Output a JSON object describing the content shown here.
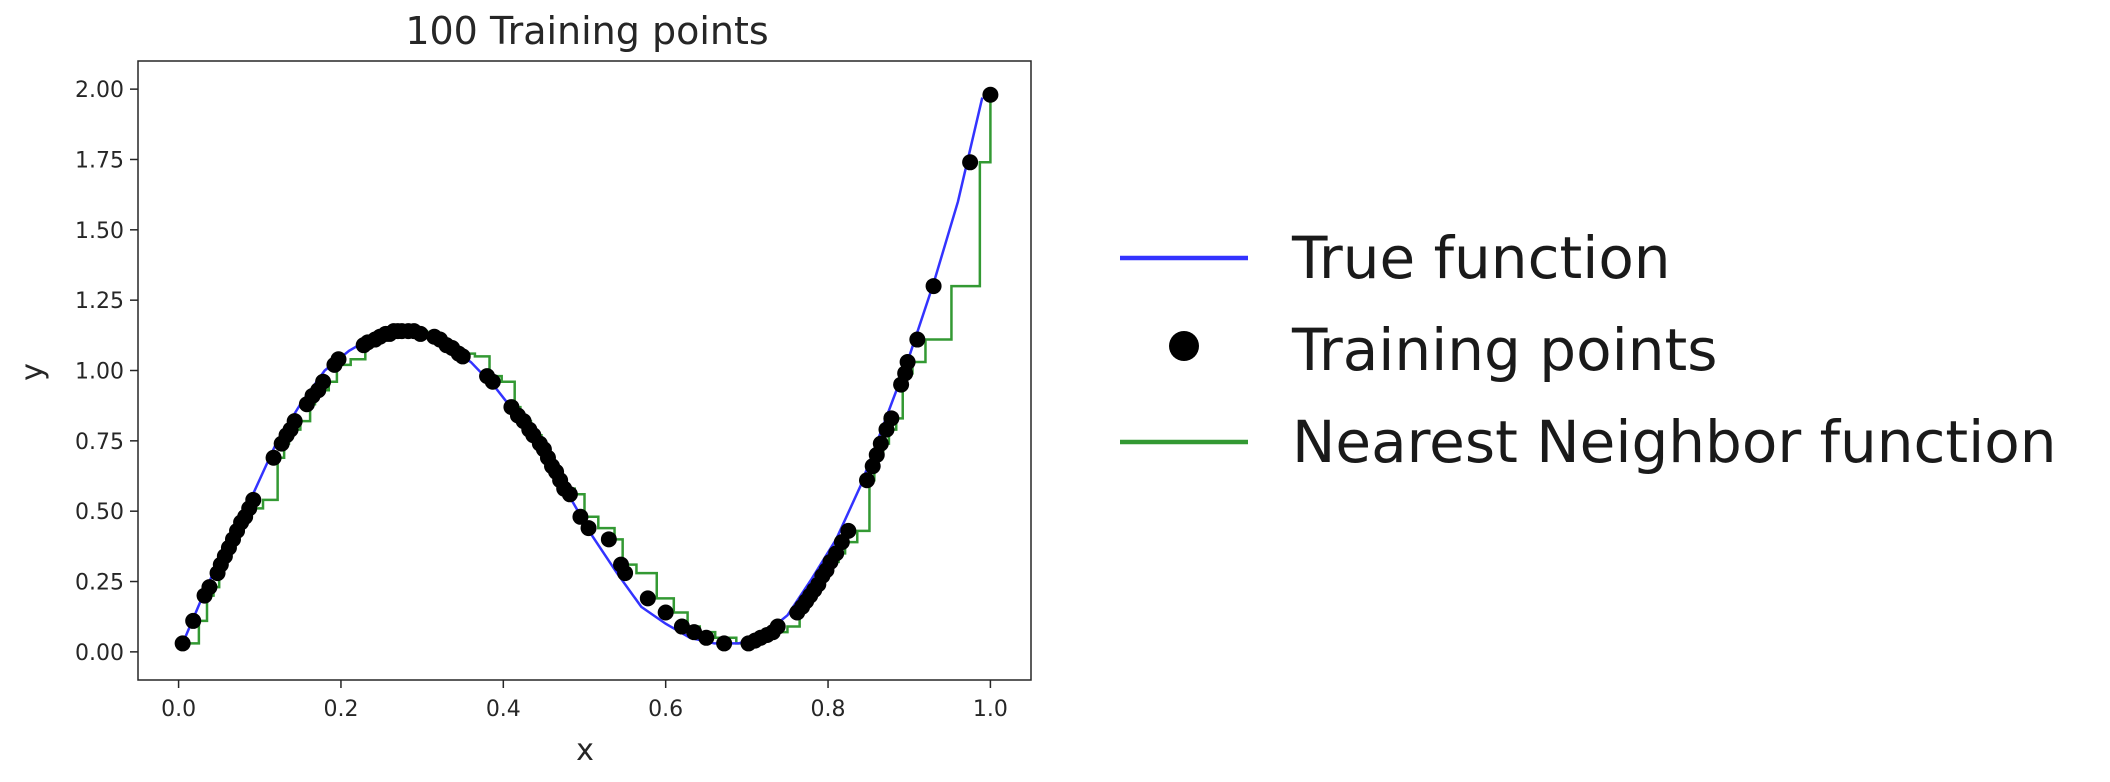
{
  "chart_data": {
    "type": "line",
    "title": "100 Training points",
    "xlabel": "x",
    "ylabel": "y",
    "xlim": [
      -0.05,
      1.05
    ],
    "ylim": [
      -0.1,
      2.1
    ],
    "grid": false,
    "legend_placement": "outside-right",
    "x_ticks": [
      0.0,
      0.2,
      0.4,
      0.6,
      0.8,
      1.0
    ],
    "x_tick_labels": [
      "0.0",
      "0.2",
      "0.4",
      "0.6",
      "0.8",
      "1.0"
    ],
    "y_ticks": [
      0.0,
      0.25,
      0.5,
      0.75,
      1.0,
      1.25,
      1.5,
      1.75,
      2.0
    ],
    "y_tick_labels": [
      "0.00",
      "0.25",
      "0.50",
      "0.75",
      "1.00",
      "1.25",
      "1.50",
      "1.75",
      "2.00"
    ],
    "colors": {
      "true_function": "#3333ff",
      "training_points": "#000000",
      "nearest_neighbor": "#339933"
    },
    "series": [
      {
        "name": "True function",
        "kind": "line",
        "color": "#3333ff",
        "x": [
          0.005,
          0.03,
          0.06,
          0.09,
          0.12,
          0.15,
          0.18,
          0.21,
          0.24,
          0.27,
          0.3,
          0.33,
          0.36,
          0.39,
          0.42,
          0.45,
          0.48,
          0.51,
          0.54,
          0.57,
          0.6,
          0.63,
          0.66,
          0.69,
          0.72,
          0.75,
          0.78,
          0.81,
          0.84,
          0.87,
          0.9,
          0.93,
          0.96,
          0.99
        ],
        "y": [
          0.03,
          0.2,
          0.39,
          0.55,
          0.74,
          0.88,
          1.0,
          1.07,
          1.12,
          1.14,
          1.13,
          1.09,
          1.03,
          0.94,
          0.83,
          0.71,
          0.56,
          0.41,
          0.28,
          0.16,
          0.1,
          0.05,
          0.03,
          0.03,
          0.06,
          0.13,
          0.26,
          0.4,
          0.59,
          0.82,
          1.05,
          1.31,
          1.6,
          1.97
        ]
      },
      {
        "name": "Training points",
        "kind": "scatter",
        "color": "#000000",
        "x": [
          0.005,
          0.018,
          0.032,
          0.038,
          0.048,
          0.052,
          0.057,
          0.062,
          0.067,
          0.072,
          0.077,
          0.082,
          0.087,
          0.092,
          0.117,
          0.127,
          0.133,
          0.138,
          0.143,
          0.158,
          0.165,
          0.172,
          0.178,
          0.192,
          0.197,
          0.228,
          0.233,
          0.242,
          0.248,
          0.255,
          0.26,
          0.265,
          0.27,
          0.275,
          0.283,
          0.29,
          0.298,
          0.315,
          0.322,
          0.33,
          0.337,
          0.345,
          0.35,
          0.38,
          0.387,
          0.41,
          0.418,
          0.425,
          0.432,
          0.437,
          0.445,
          0.45,
          0.455,
          0.46,
          0.465,
          0.47,
          0.475,
          0.482,
          0.495,
          0.505,
          0.53,
          0.545,
          0.55,
          0.578,
          0.6,
          0.62,
          0.635,
          0.65,
          0.672,
          0.702,
          0.71,
          0.717,
          0.725,
          0.732,
          0.738,
          0.762,
          0.768,
          0.773,
          0.778,
          0.783,
          0.788,
          0.793,
          0.798,
          0.803,
          0.81,
          0.817,
          0.825,
          0.848,
          0.855,
          0.86,
          0.865,
          0.872,
          0.878,
          0.89,
          0.895,
          0.898,
          0.91,
          0.93,
          0.975,
          1.0
        ],
        "y": [
          0.03,
          0.11,
          0.2,
          0.23,
          0.28,
          0.31,
          0.34,
          0.37,
          0.4,
          0.43,
          0.46,
          0.48,
          0.51,
          0.54,
          0.69,
          0.74,
          0.77,
          0.79,
          0.82,
          0.88,
          0.91,
          0.93,
          0.96,
          1.02,
          1.04,
          1.09,
          1.1,
          1.11,
          1.12,
          1.13,
          1.13,
          1.14,
          1.14,
          1.14,
          1.14,
          1.14,
          1.13,
          1.12,
          1.11,
          1.09,
          1.08,
          1.06,
          1.05,
          0.98,
          0.96,
          0.87,
          0.84,
          0.82,
          0.79,
          0.77,
          0.74,
          0.72,
          0.69,
          0.66,
          0.64,
          0.61,
          0.58,
          0.56,
          0.48,
          0.44,
          0.4,
          0.31,
          0.28,
          0.19,
          0.14,
          0.09,
          0.07,
          0.05,
          0.03,
          0.03,
          0.04,
          0.05,
          0.06,
          0.07,
          0.09,
          0.14,
          0.16,
          0.18,
          0.2,
          0.22,
          0.24,
          0.27,
          0.29,
          0.32,
          0.35,
          0.39,
          0.43,
          0.61,
          0.66,
          0.7,
          0.74,
          0.79,
          0.83,
          0.95,
          0.99,
          1.03,
          1.11,
          1.3,
          1.74,
          1.98
        ]
      },
      {
        "name": "Nearest Neighbor function",
        "kind": "step",
        "color": "#339933",
        "x": [
          0.005,
          0.01,
          0.025,
          0.035,
          0.043,
          0.05,
          0.055,
          0.06,
          0.065,
          0.07,
          0.075,
          0.08,
          0.085,
          0.09,
          0.104,
          0.122,
          0.13,
          0.136,
          0.14,
          0.15,
          0.162,
          0.168,
          0.175,
          0.185,
          0.195,
          0.212,
          0.23,
          0.238,
          0.245,
          0.252,
          0.258,
          0.262,
          0.268,
          0.272,
          0.279,
          0.287,
          0.294,
          0.306,
          0.318,
          0.326,
          0.333,
          0.341,
          0.347,
          0.365,
          0.383,
          0.398,
          0.414,
          0.421,
          0.428,
          0.434,
          0.441,
          0.447,
          0.452,
          0.457,
          0.462,
          0.467,
          0.472,
          0.478,
          0.488,
          0.5,
          0.517,
          0.537,
          0.547,
          0.564,
          0.589,
          0.61,
          0.627,
          0.642,
          0.661,
          0.687,
          0.706,
          0.713,
          0.721,
          0.728,
          0.735,
          0.75,
          0.765,
          0.77,
          0.775,
          0.78,
          0.785,
          0.79,
          0.795,
          0.8,
          0.806,
          0.813,
          0.821,
          0.836,
          0.851,
          0.857,
          0.862,
          0.868,
          0.875,
          0.884,
          0.892,
          0.896,
          0.904,
          0.92,
          0.952,
          0.987,
          1.0
        ],
        "y": [
          0.03,
          0.03,
          0.11,
          0.2,
          0.23,
          0.28,
          0.31,
          0.34,
          0.37,
          0.4,
          0.43,
          0.46,
          0.48,
          0.51,
          0.54,
          0.69,
          0.74,
          0.77,
          0.79,
          0.82,
          0.88,
          0.91,
          0.93,
          0.96,
          1.02,
          1.04,
          1.09,
          1.1,
          1.11,
          1.12,
          1.13,
          1.13,
          1.14,
          1.14,
          1.14,
          1.14,
          1.14,
          1.13,
          1.12,
          1.11,
          1.09,
          1.08,
          1.06,
          1.05,
          0.98,
          0.96,
          0.87,
          0.84,
          0.82,
          0.79,
          0.77,
          0.74,
          0.72,
          0.69,
          0.66,
          0.64,
          0.61,
          0.58,
          0.56,
          0.48,
          0.44,
          0.4,
          0.31,
          0.28,
          0.19,
          0.14,
          0.09,
          0.07,
          0.05,
          0.03,
          0.03,
          0.04,
          0.05,
          0.06,
          0.07,
          0.09,
          0.14,
          0.16,
          0.18,
          0.2,
          0.22,
          0.24,
          0.27,
          0.29,
          0.32,
          0.35,
          0.39,
          0.43,
          0.61,
          0.66,
          0.7,
          0.74,
          0.79,
          0.83,
          0.95,
          0.99,
          1.03,
          1.11,
          1.3,
          1.74,
          1.98
        ]
      }
    ],
    "legend": [
      {
        "label": "True function",
        "marker": "line",
        "color": "#3333ff"
      },
      {
        "label": "Training points",
        "marker": "dot",
        "color": "#000000"
      },
      {
        "label": "Nearest Neighbor function",
        "marker": "line",
        "color": "#339933"
      }
    ]
  }
}
